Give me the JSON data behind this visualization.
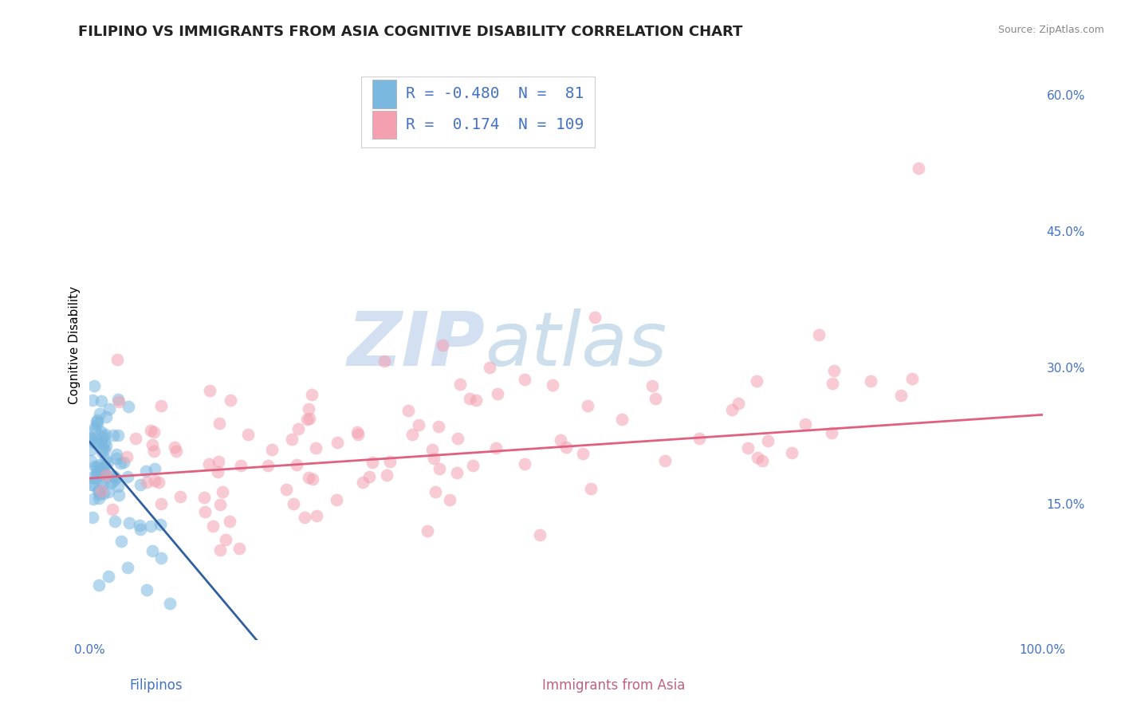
{
  "title": "FILIPINO VS IMMIGRANTS FROM ASIA COGNITIVE DISABILITY CORRELATION CHART",
  "source": "Source: ZipAtlas.com",
  "ylabel": "Cognitive Disability",
  "xlim": [
    0.0,
    1.0
  ],
  "ylim": [
    0.0,
    0.65
  ],
  "yticks": [
    0.15,
    0.3,
    0.45,
    0.6
  ],
  "ytick_labels": [
    "15.0%",
    "30.0%",
    "45.0%",
    "60.0%"
  ],
  "xticks": [
    0.0,
    1.0
  ],
  "xtick_labels": [
    "0.0%",
    "100.0%"
  ],
  "legend_R1": "-0.480",
  "legend_N1": "81",
  "legend_R2": "0.174",
  "legend_N2": "109",
  "color_filipino": "#7ab8e0",
  "color_asia": "#f4a0b0",
  "color_line_filipino": "#3060a0",
  "color_line_asia": "#e06080",
  "background_color": "#ffffff",
  "grid_color": "#c8c8d8",
  "watermark_zip": "ZIP",
  "watermark_atlas": "atlas",
  "title_fontsize": 13,
  "label_fontsize": 11,
  "tick_fontsize": 11,
  "legend_fontsize": 14,
  "legend_color": "#4472c4",
  "tick_color": "#4472c4",
  "fil_line_x0": 0.0,
  "fil_line_y0": 0.218,
  "fil_line_x1": 0.175,
  "fil_line_y1": 0.0,
  "asia_line_x0": 0.0,
  "asia_line_y0": 0.178,
  "asia_line_x1": 1.0,
  "asia_line_y1": 0.248,
  "xlabel_fil": "Filipinos",
  "xlabel_asia": "Immigrants from Asia",
  "xlabel_color_fil": "#4472c4",
  "xlabel_color_asia": "#c06080"
}
